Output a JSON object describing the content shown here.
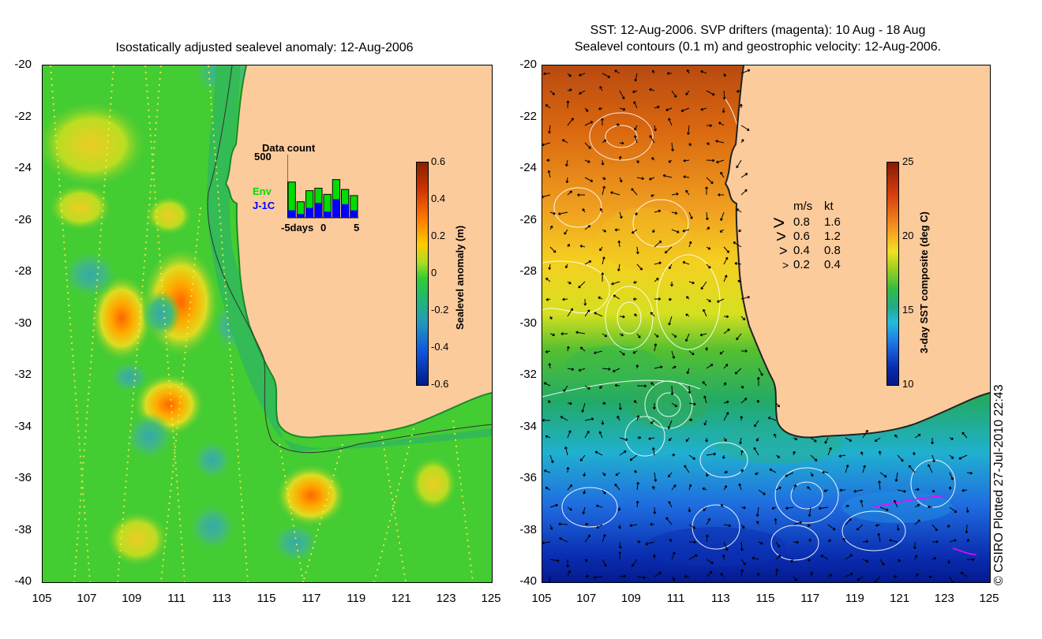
{
  "left_title": "Isostatically adjusted sealevel anomaly: 12-Aug-2006",
  "right_title_line1": "SST: 12-Aug-2006. SVP drifters (magenta): 10 Aug - 18 Aug",
  "right_title_line2": "Sealevel contours (0.1 m) and geostrophic velocity: 12-Aug-2006.",
  "lat_ticks": [
    "-20",
    "-22",
    "-24",
    "-26",
    "-28",
    "-30",
    "-32",
    "-34",
    "-36",
    "-38",
    "-40"
  ],
  "lon_ticks": [
    "105",
    "107",
    "109",
    "111",
    "113",
    "115",
    "117",
    "119",
    "121",
    "123",
    "125"
  ],
  "data_count": {
    "title": "Data count",
    "ymax_label": "500",
    "legend_env": "Env",
    "legend_j1c": "J-1C",
    "x_left_label": "-5days",
    "x_mid_label": "0",
    "x_right_label": "5",
    "env_counts": [
      290,
      130,
      220,
      240,
      190,
      310,
      230,
      180
    ],
    "j1c_counts": [
      60,
      30,
      80,
      120,
      50,
      150,
      110,
      60
    ],
    "ymax": 500,
    "env_color": "#00dd00",
    "j1c_color": "#0000ff"
  },
  "sla_colorbar": {
    "label": "Sealevel anomaly (m)",
    "ticks": [
      "0.6",
      "0.4",
      "0.2",
      "0",
      "-0.2",
      "-0.4",
      "-0.6"
    ]
  },
  "sst_colorbar": {
    "label": "3-day SST composite (deg C)",
    "ticks": [
      "25",
      "20",
      "15",
      "10"
    ]
  },
  "velocity_legend": {
    "header_ms": "m/s",
    "header_kt": "kt",
    "rows": [
      {
        "ms": "0.8",
        "kt": "1.6"
      },
      {
        "ms": "0.6",
        "kt": "1.2"
      },
      {
        "ms": "0.4",
        "kt": "0.8"
      },
      {
        "ms": "0.2",
        "kt": "0.4"
      }
    ]
  },
  "credit": "© CSIRO Plotted 27-Jul-2010 22:43",
  "colors": {
    "land": "#fccb9c",
    "sla_base": "#33cc33",
    "coast_shelf": "#22bb44"
  }
}
